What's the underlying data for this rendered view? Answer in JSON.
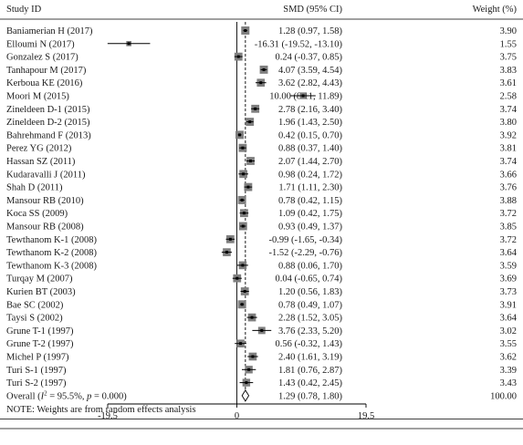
{
  "chart_data": {
    "type": "forest",
    "headers": {
      "study": "Study ID",
      "effect": "SMD (95% CI)",
      "weight": "Weight (%)"
    },
    "studies": [
      {
        "label": "Baniamerian H (2017)",
        "smd": 1.28,
        "lo": 0.97,
        "hi": 1.58,
        "ci_text": "1.28 (0.97, 1.58)",
        "weight": 3.9,
        "weight_text": "3.90"
      },
      {
        "label": "Elloumi N (2017)",
        "smd": -16.31,
        "lo": -19.52,
        "hi": -13.1,
        "ci_text": "-16.31 (-19.52, -13.10)",
        "weight": 1.55,
        "weight_text": "1.55"
      },
      {
        "label": "Gonzalez S (2017)",
        "smd": 0.24,
        "lo": -0.37,
        "hi": 0.85,
        "ci_text": "0.24 (-0.37, 0.85)",
        "weight": 3.75,
        "weight_text": "3.75"
      },
      {
        "label": "Tanhapour M (2017)",
        "smd": 4.07,
        "lo": 3.59,
        "hi": 4.54,
        "ci_text": "4.07 (3.59, 4.54)",
        "weight": 3.83,
        "weight_text": "3.83"
      },
      {
        "label": "Kerboua KE (2016)",
        "smd": 3.62,
        "lo": 2.82,
        "hi": 4.43,
        "ci_text": "3.62 (2.82, 4.43)",
        "weight": 3.61,
        "weight_text": "3.61"
      },
      {
        "label": "Moori M (2015)",
        "smd": 10.0,
        "lo": 8.11,
        "hi": 11.89,
        "ci_text": "10.00 (8.11, 11.89)",
        "weight": 2.58,
        "weight_text": "2.58"
      },
      {
        "label": "Zineldeen D-1 (2015)",
        "smd": 2.78,
        "lo": 2.16,
        "hi": 3.4,
        "ci_text": "2.78 (2.16, 3.40)",
        "weight": 3.74,
        "weight_text": "3.74"
      },
      {
        "label": "Zineldeen D-2 (2015)",
        "smd": 1.96,
        "lo": 1.43,
        "hi": 2.5,
        "ci_text": "1.96 (1.43, 2.50)",
        "weight": 3.8,
        "weight_text": "3.80"
      },
      {
        "label": "Bahrehmand F (2013)",
        "smd": 0.42,
        "lo": 0.15,
        "hi": 0.7,
        "ci_text": "0.42 (0.15, 0.70)",
        "weight": 3.92,
        "weight_text": "3.92"
      },
      {
        "label": "Perez YG (2012)",
        "smd": 0.88,
        "lo": 0.37,
        "hi": 1.4,
        "ci_text": "0.88 (0.37, 1.40)",
        "weight": 3.81,
        "weight_text": "3.81"
      },
      {
        "label": "Hassan SZ (2011)",
        "smd": 2.07,
        "lo": 1.44,
        "hi": 2.7,
        "ci_text": "2.07 (1.44, 2.70)",
        "weight": 3.74,
        "weight_text": "3.74"
      },
      {
        "label": "Kudaravalli J (2011)",
        "smd": 0.98,
        "lo": 0.24,
        "hi": 1.72,
        "ci_text": "0.98 (0.24, 1.72)",
        "weight": 3.66,
        "weight_text": "3.66"
      },
      {
        "label": "Shah D (2011)",
        "smd": 1.71,
        "lo": 1.11,
        "hi": 2.3,
        "ci_text": "1.71 (1.11, 2.30)",
        "weight": 3.76,
        "weight_text": "3.76"
      },
      {
        "label": "Mansour RB (2010)",
        "smd": 0.78,
        "lo": 0.42,
        "hi": 1.15,
        "ci_text": "0.78 (0.42, 1.15)",
        "weight": 3.88,
        "weight_text": "3.88"
      },
      {
        "label": "Koca SS (2009)",
        "smd": 1.09,
        "lo": 0.42,
        "hi": 1.75,
        "ci_text": "1.09 (0.42, 1.75)",
        "weight": 3.72,
        "weight_text": "3.72"
      },
      {
        "label": "Mansour RB (2008)",
        "smd": 0.93,
        "lo": 0.49,
        "hi": 1.37,
        "ci_text": "0.93 (0.49, 1.37)",
        "weight": 3.85,
        "weight_text": "3.85"
      },
      {
        "label": "Tewthanom K-1 (2008)",
        "smd": -0.99,
        "lo": -1.65,
        "hi": -0.34,
        "ci_text": "-0.99 (-1.65, -0.34)",
        "weight": 3.72,
        "weight_text": "3.72"
      },
      {
        "label": "Tewthanom K-2 (2008)",
        "smd": -1.52,
        "lo": -2.29,
        "hi": -0.76,
        "ci_text": "-1.52 (-2.29, -0.76)",
        "weight": 3.64,
        "weight_text": "3.64"
      },
      {
        "label": "Tewthanom K-3 (2008)",
        "smd": 0.88,
        "lo": 0.06,
        "hi": 1.7,
        "ci_text": "0.88 (0.06, 1.70)",
        "weight": 3.59,
        "weight_text": "3.59"
      },
      {
        "label": "Turqay M (2007)",
        "smd": 0.04,
        "lo": -0.65,
        "hi": 0.74,
        "ci_text": "0.04 (-0.65, 0.74)",
        "weight": 3.69,
        "weight_text": "3.69"
      },
      {
        "label": "Kurien BT (2003)",
        "smd": 1.2,
        "lo": 0.56,
        "hi": 1.83,
        "ci_text": "1.20 (0.56, 1.83)",
        "weight": 3.73,
        "weight_text": "3.73"
      },
      {
        "label": "Bae SC (2002)",
        "smd": 0.78,
        "lo": 0.49,
        "hi": 1.07,
        "ci_text": "0.78 (0.49, 1.07)",
        "weight": 3.91,
        "weight_text": "3.91"
      },
      {
        "label": "Taysi S (2002)",
        "smd": 2.28,
        "lo": 1.52,
        "hi": 3.05,
        "ci_text": "2.28 (1.52, 3.05)",
        "weight": 3.64,
        "weight_text": "3.64"
      },
      {
        "label": "Grune T-1 (1997)",
        "smd": 3.76,
        "lo": 2.33,
        "hi": 5.2,
        "ci_text": "3.76 (2.33, 5.20)",
        "weight": 3.02,
        "weight_text": "3.02"
      },
      {
        "label": "Grune T-2 (1997)",
        "smd": 0.56,
        "lo": -0.32,
        "hi": 1.43,
        "ci_text": "0.56 (-0.32, 1.43)",
        "weight": 3.55,
        "weight_text": "3.55"
      },
      {
        "label": "Michel P (1997)",
        "smd": 2.4,
        "lo": 1.61,
        "hi": 3.19,
        "ci_text": "2.40 (1.61, 3.19)",
        "weight": 3.62,
        "weight_text": "3.62"
      },
      {
        "label": "Turi S-1 (1997)",
        "smd": 1.81,
        "lo": 0.76,
        "hi": 2.87,
        "ci_text": "1.81 (0.76, 2.87)",
        "weight": 3.39,
        "weight_text": "3.39"
      },
      {
        "label": "Turi S-2 (1997)",
        "smd": 1.43,
        "lo": 0.42,
        "hi": 2.45,
        "ci_text": "1.43 (0.42, 2.45)",
        "weight": 3.43,
        "weight_text": "3.43"
      }
    ],
    "overall": {
      "label_prefix": "Overall (",
      "i2_symbol": "I",
      "i2_text": " = 95.5%, ",
      "p_symbol": "p",
      "p_text": " = 0.000)",
      "smd": 1.29,
      "lo": 0.78,
      "hi": 1.8,
      "ci_text": "1.29 (0.78, 1.80)",
      "weight_text": "100.00"
    },
    "note": "NOTE: Weights are from random effects analysis",
    "x_ticks": [
      {
        "value": -19.5,
        "label": "-19.5"
      },
      {
        "value": 0,
        "label": "0"
      },
      {
        "value": 19.5,
        "label": "19.5"
      }
    ],
    "xlim": [
      -19.5,
      19.5
    ],
    "null_line": 0,
    "reference_line": 1.29,
    "colors": {
      "box": "#7f7f7f",
      "line": "#000000",
      "text": "#1a1a1a",
      "rule": "#000000"
    }
  }
}
